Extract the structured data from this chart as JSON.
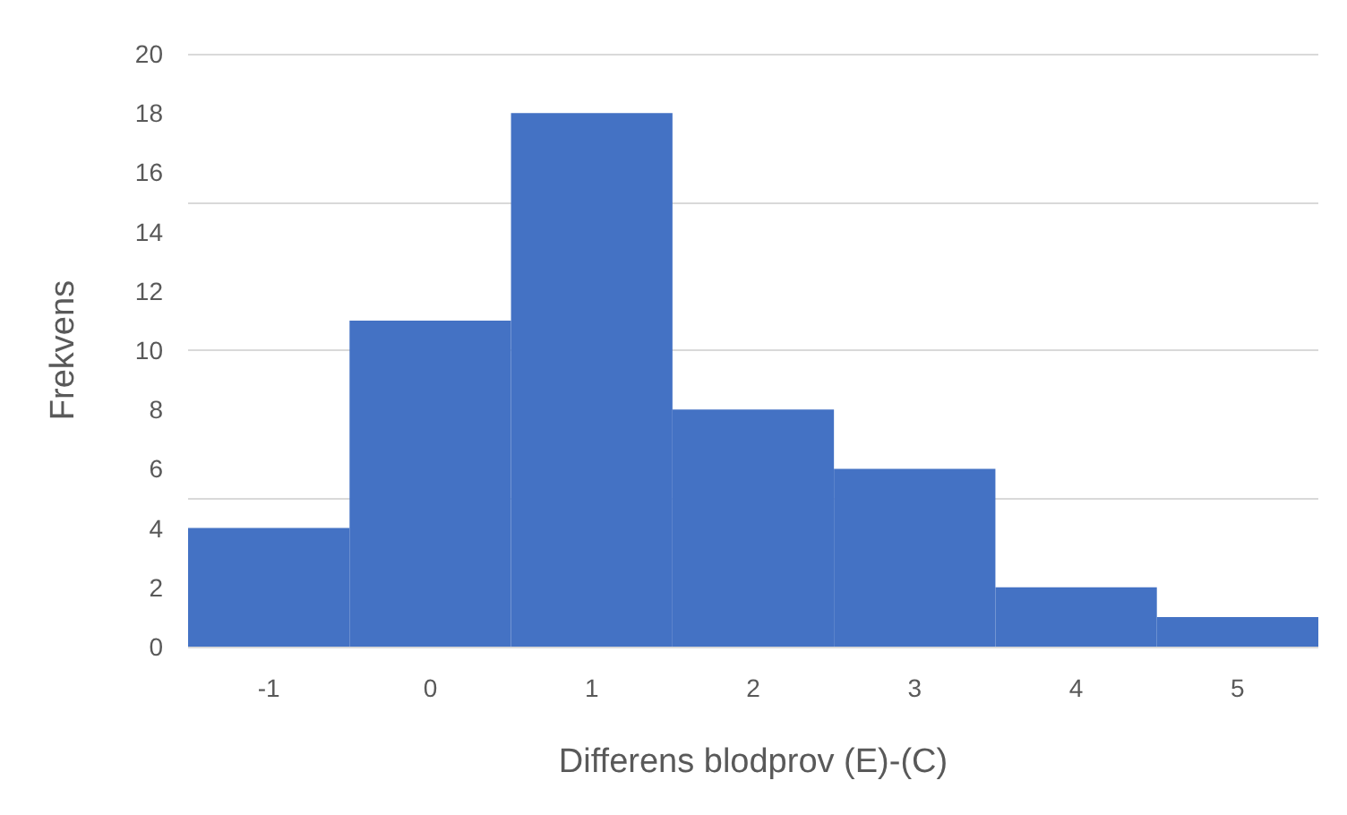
{
  "chart_data": {
    "type": "histogram",
    "xlabel": "Differens blodprov (E)-(C)",
    "ylabel": "Frekvens",
    "bins": [
      -1.5,
      -0.5,
      0.5,
      1.5,
      2.5,
      3.5,
      4.5,
      5.5
    ],
    "values": [
      4,
      11,
      18,
      8,
      6,
      2,
      1
    ],
    "color": "#4472c4",
    "xlim": [
      -1.5,
      5.5
    ],
    "xticks": [
      -1,
      0,
      1,
      2,
      3,
      4,
      5
    ],
    "ylim": [
      0,
      20
    ],
    "yticks": [
      0,
      2,
      4,
      6,
      8,
      10,
      12,
      14,
      16,
      18,
      20
    ],
    "grid": "y",
    "legend": false
  }
}
